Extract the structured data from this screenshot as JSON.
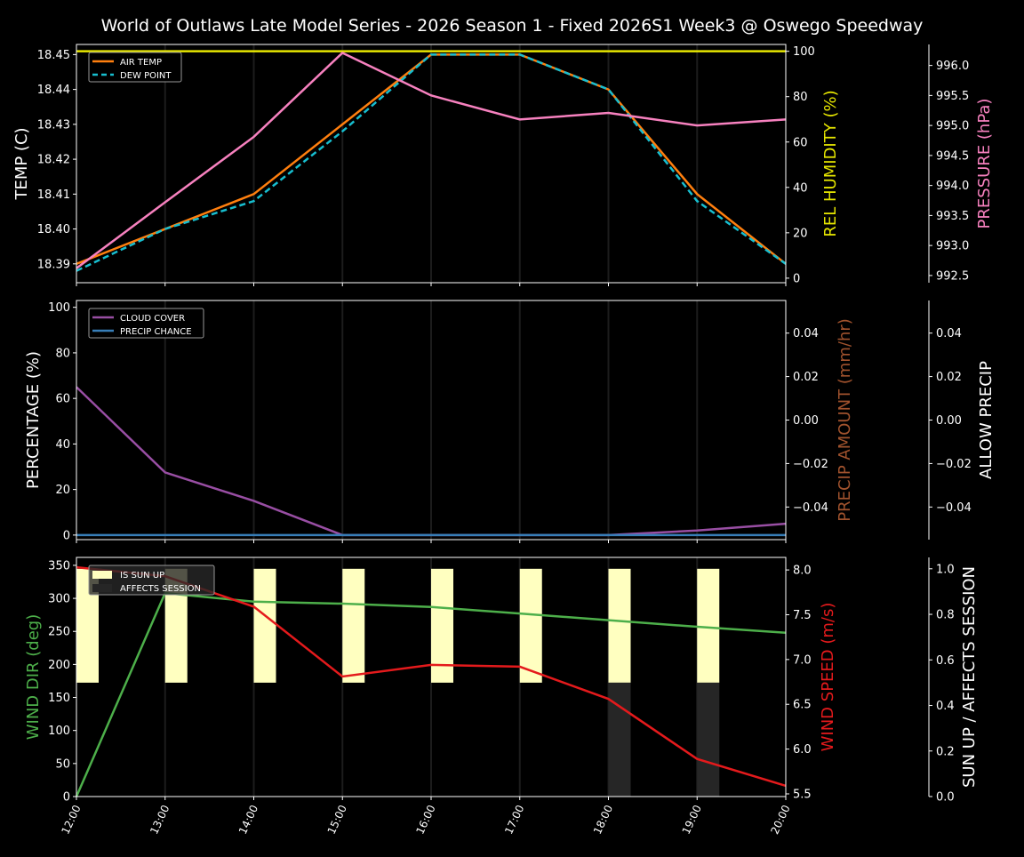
{
  "title": "World of Outlaws Late Model Series - 2026 Season 1 - Fixed 2026S1 Week3 @ Oswego Speedway",
  "chart_data": [
    {
      "type": "line",
      "x": [
        "12:00",
        "13:00",
        "14:00",
        "15:00",
        "16:00",
        "17:00",
        "18:00",
        "19:00",
        "20:00"
      ],
      "ylabel": "TEMP (C)",
      "ylabel_right": "REL HUMIDITY (%)",
      "ylabel_right2": "PRESSURE (hPa)",
      "yticks": [
        "18.39",
        "18.40",
        "18.41",
        "18.42",
        "18.43",
        "18.44",
        "18.45"
      ],
      "ylim": [
        18.3846,
        18.4529
      ],
      "yticks_right": [
        "0",
        "20",
        "40",
        "60",
        "80",
        "100"
      ],
      "ylim_right": [
        -2,
        103
      ],
      "yticks_right2": [
        "992.5",
        "993.0",
        "993.5",
        "994.0",
        "994.5",
        "995.0",
        "995.5",
        "996.0"
      ],
      "ylim_right2": [
        992.38,
        996.35
      ],
      "legend": "top-left",
      "series": [
        {
          "name": "AIR TEMP",
          "axis": "left",
          "color": "#ff7f0e",
          "values": [
            18.39,
            18.4,
            18.41,
            18.43,
            18.45,
            18.45,
            18.44,
            18.41,
            18.39
          ]
        },
        {
          "name": "DEW POINT",
          "axis": "left",
          "color": "#17becf",
          "dashed": true,
          "values": [
            18.388,
            18.4,
            18.408,
            18.428,
            18.45,
            18.45,
            18.44,
            18.408,
            18.39
          ]
        },
        {
          "axis": "right",
          "color": "#e6e600",
          "values": [
            100,
            100,
            100,
            100,
            100,
            100,
            100,
            100,
            100
          ]
        },
        {
          "axis": "right2",
          "color": "#f781bf",
          "values": [
            992.62,
            993.72,
            994.81,
            996.21,
            995.5,
            995.1,
            995.21,
            995.0,
            995.1
          ]
        }
      ]
    },
    {
      "type": "line",
      "x": [
        "12:00",
        "13:00",
        "14:00",
        "15:00",
        "16:00",
        "17:00",
        "18:00",
        "19:00",
        "20:00"
      ],
      "ylabel": "PERCENTAGE (%)",
      "ylabel_right": "PRECIP AMOUNT (mm/hr)",
      "ylabel_right2": "ALLOW PRECIP",
      "yticks": [
        "0",
        "20",
        "40",
        "60",
        "80",
        "100"
      ],
      "ylim": [
        -2,
        103
      ],
      "yticks_right": [
        "−0.04",
        "−0.02",
        "0.00",
        "0.02",
        "0.04"
      ],
      "ylim_right": [
        -0.055,
        0.055
      ],
      "yticks_right2": [
        "−0.04",
        "−0.02",
        "0.00",
        "0.02",
        "0.04"
      ],
      "legend": "top-left",
      "series": [
        {
          "name": "CLOUD COVER",
          "color": "#984ea3",
          "values": [
            65,
            27.5,
            15,
            0,
            0,
            0,
            0,
            2,
            5
          ]
        },
        {
          "name": "PRECIP CHANCE",
          "color": "#377eb8",
          "values": [
            0,
            0,
            0,
            0,
            0,
            0,
            0,
            0,
            0
          ]
        }
      ]
    },
    {
      "type": "line",
      "x": [
        "12:00",
        "13:00",
        "14:00",
        "15:00",
        "16:00",
        "17:00",
        "18:00",
        "19:00",
        "20:00"
      ],
      "ylabel": "WIND DIR (deg)",
      "ylabel_right": "WIND SPEED (m/s)",
      "ylabel_right2": "SUN UP / AFFECTS SESSION",
      "yticks": [
        "0",
        "50",
        "100",
        "150",
        "200",
        "250",
        "300",
        "350"
      ],
      "ylim": [
        0,
        362
      ],
      "yticks_right": [
        "5.5",
        "6.0",
        "6.5",
        "7.0",
        "7.5",
        "8.0"
      ],
      "ylim_right": [
        5.47,
        8.14
      ],
      "yticks_right2": [
        "0.0",
        "0.2",
        "0.4",
        "0.6",
        "0.8",
        "1.0"
      ],
      "ylim_right2": [
        0,
        1.05
      ],
      "legend": "top-left",
      "series": [
        {
          "name": "WIND DIR",
          "axis": "left",
          "color": "#4daf4a",
          "values": [
            0,
            308,
            295,
            292,
            287,
            277,
            267,
            257,
            248
          ]
        },
        {
          "name": "WIND SPEED",
          "axis": "right",
          "color": "#e41a1c",
          "values": [
            8.03,
            7.93,
            7.59,
            6.81,
            6.94,
            6.92,
            6.56,
            5.89,
            5.59
          ]
        }
      ],
      "bars": [
        {
          "name": "IS SUN UP",
          "color": "#ffffc0",
          "values": [
            1,
            1,
            1,
            1,
            1,
            1,
            1,
            1,
            0
          ]
        },
        {
          "name": "AFFECTS SESSION",
          "color": "#262626",
          "values": [
            0,
            0,
            0,
            0,
            0,
            0,
            1,
            1,
            0
          ]
        }
      ]
    }
  ]
}
